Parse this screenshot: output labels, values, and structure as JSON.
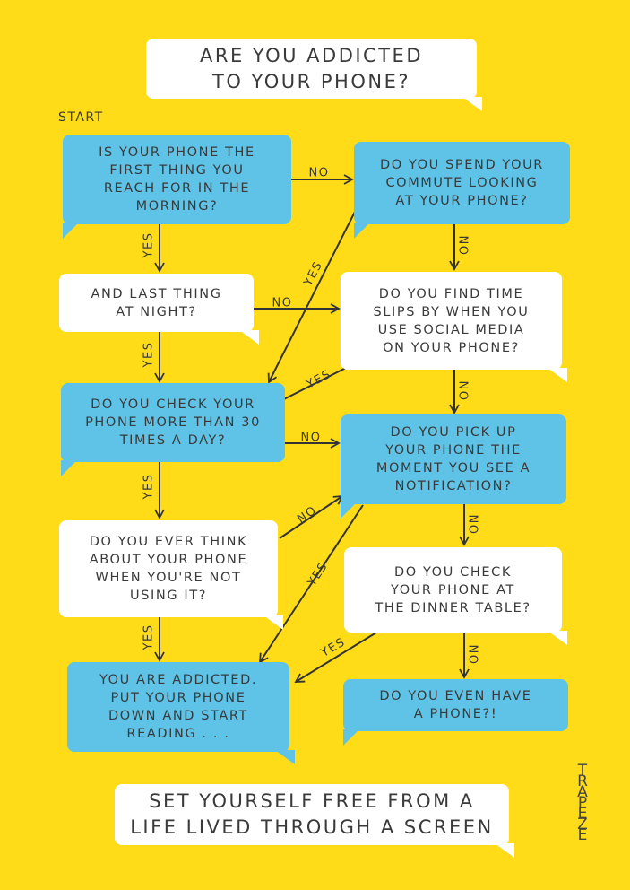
{
  "title": "ARE YOU ADDICTED\nTO YOUR PHONE?",
  "start_label": "START",
  "nodes": [
    {
      "id": "q1",
      "text": "IS YOUR PHONE THE\nFIRST THING YOU\nREACH FOR IN THE\nMORNING?",
      "color": "blue"
    },
    {
      "id": "q2",
      "text": "DO YOU SPEND YOUR\nCOMMUTE LOOKING\nAT YOUR PHONE?",
      "color": "blue"
    },
    {
      "id": "q3",
      "text": "AND LAST THING\nAT NIGHT?",
      "color": "white"
    },
    {
      "id": "q4",
      "text": "DO YOU FIND TIME\nSLIPS BY WHEN YOU\nUSE SOCIAL MEDIA\nON YOUR PHONE?",
      "color": "white"
    },
    {
      "id": "q5",
      "text": "DO YOU CHECK YOUR\nPHONE MORE THAN 30\nTIMES A DAY?",
      "color": "blue"
    },
    {
      "id": "q6",
      "text": "DO YOU PICK UP\nYOUR PHONE THE\nMOMENT YOU SEE A\nNOTIFICATION?",
      "color": "blue"
    },
    {
      "id": "q7",
      "text": "DO YOU EVER THINK\nABOUT YOUR PHONE\nWHEN YOU'RE NOT\nUSING IT?",
      "color": "white"
    },
    {
      "id": "q8",
      "text": "DO YOU CHECK\nYOUR PHONE AT\nTHE DINNER TABLE?",
      "color": "white"
    },
    {
      "id": "addicted",
      "text": "YOU ARE ADDICTED.\nPUT YOUR PHONE\nDOWN AND START\nREADING . . .",
      "color": "blue"
    },
    {
      "id": "q9",
      "text": "DO YOU EVEN HAVE\nA PHONE?!",
      "color": "blue"
    }
  ],
  "edges": [
    {
      "from": "q1",
      "to": "q2",
      "label": "NO"
    },
    {
      "from": "q1",
      "to": "q3",
      "label": "YES"
    },
    {
      "from": "q2",
      "to": "q5",
      "label": "YES"
    },
    {
      "from": "q2",
      "to": "q4",
      "label": "NO"
    },
    {
      "from": "q3",
      "to": "q4",
      "label": "NO"
    },
    {
      "from": "q3",
      "to": "q5",
      "label": "YES"
    },
    {
      "from": "q4",
      "to": "q5",
      "label": "YES"
    },
    {
      "from": "q4",
      "to": "q6",
      "label": "NO"
    },
    {
      "from": "q5",
      "to": "q6",
      "label": "NO"
    },
    {
      "from": "q5",
      "to": "q7",
      "label": "YES"
    },
    {
      "from": "q7",
      "to": "q6",
      "label": "NO"
    },
    {
      "from": "q6",
      "to": "addicted",
      "label": "YES"
    },
    {
      "from": "q6",
      "to": "q8",
      "label": "NO"
    },
    {
      "from": "q7",
      "to": "addicted",
      "label": "YES"
    },
    {
      "from": "q8",
      "to": "addicted",
      "label": "YES"
    },
    {
      "from": "q8",
      "to": "q9",
      "label": "NO"
    }
  ],
  "footer": "SET YOURSELF FREE FROM A\nLIFE LIVED THROUGH A SCREEN",
  "logo": "TRAPEZE",
  "colors": {
    "background": "#FFDC17",
    "blue": "#5EC3E6",
    "white": "#FFFFFF",
    "text": "#3A3A3A"
  }
}
